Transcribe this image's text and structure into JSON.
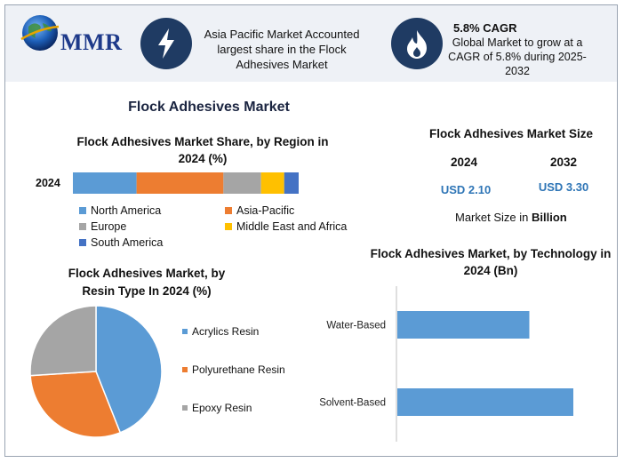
{
  "header": {
    "logo_text": "MMR",
    "stat1_text": "Asia Pacific Market Accounted largest share in the Flock Adhesives Market",
    "stat2_title": "5.8% CAGR",
    "stat2_text": "Global Market to grow at a CAGR of 5.8% during 2025-2032"
  },
  "main_title": "Flock Adhesives Market",
  "market_size": {
    "title": "Flock Adhesives Market Size",
    "year1": "2024",
    "year2": "2032",
    "value1": "USD 2.10",
    "value2": "USD 3.30",
    "unit_prefix": "Market Size in ",
    "unit_bold": "Billion"
  },
  "chart_data": [
    {
      "type": "bar",
      "orientation": "horizontal-stacked",
      "title": "Flock Adhesives Market Share, by Region in 2024 (%)",
      "categories": [
        "2024"
      ],
      "series": [
        {
          "name": "North America",
          "values": [
            22
          ],
          "color": "#5b9bd5"
        },
        {
          "name": "Asia-Pacific",
          "values": [
            30
          ],
          "color": "#ed7d31"
        },
        {
          "name": "Europe",
          "values": [
            13
          ],
          "color": "#a5a5a5"
        },
        {
          "name": "Middle East and Africa",
          "values": [
            8
          ],
          "color": "#ffc000"
        },
        {
          "name": "South America",
          "values": [
            5
          ],
          "color": "#4472c4"
        }
      ],
      "legend": "bottom"
    },
    {
      "type": "pie",
      "title": "Flock Adhesives Market, by Resin Type In 2024 (%)",
      "labels": [
        "Acrylics Resin",
        "Polyurethane Resin",
        "Epoxy Resin"
      ],
      "values": [
        44,
        30,
        26
      ],
      "colors": [
        "#5b9bd5",
        "#ed7d31",
        "#a5a5a5"
      ],
      "legend": "right"
    },
    {
      "type": "bar",
      "orientation": "horizontal",
      "title": "Flock Adhesives Market, by Technology in 2024 (Bn)",
      "categories": [
        "Water-Based",
        "Solvent-Based"
      ],
      "values": [
        0.75,
        1.0
      ],
      "color": "#5b9bd5"
    }
  ]
}
